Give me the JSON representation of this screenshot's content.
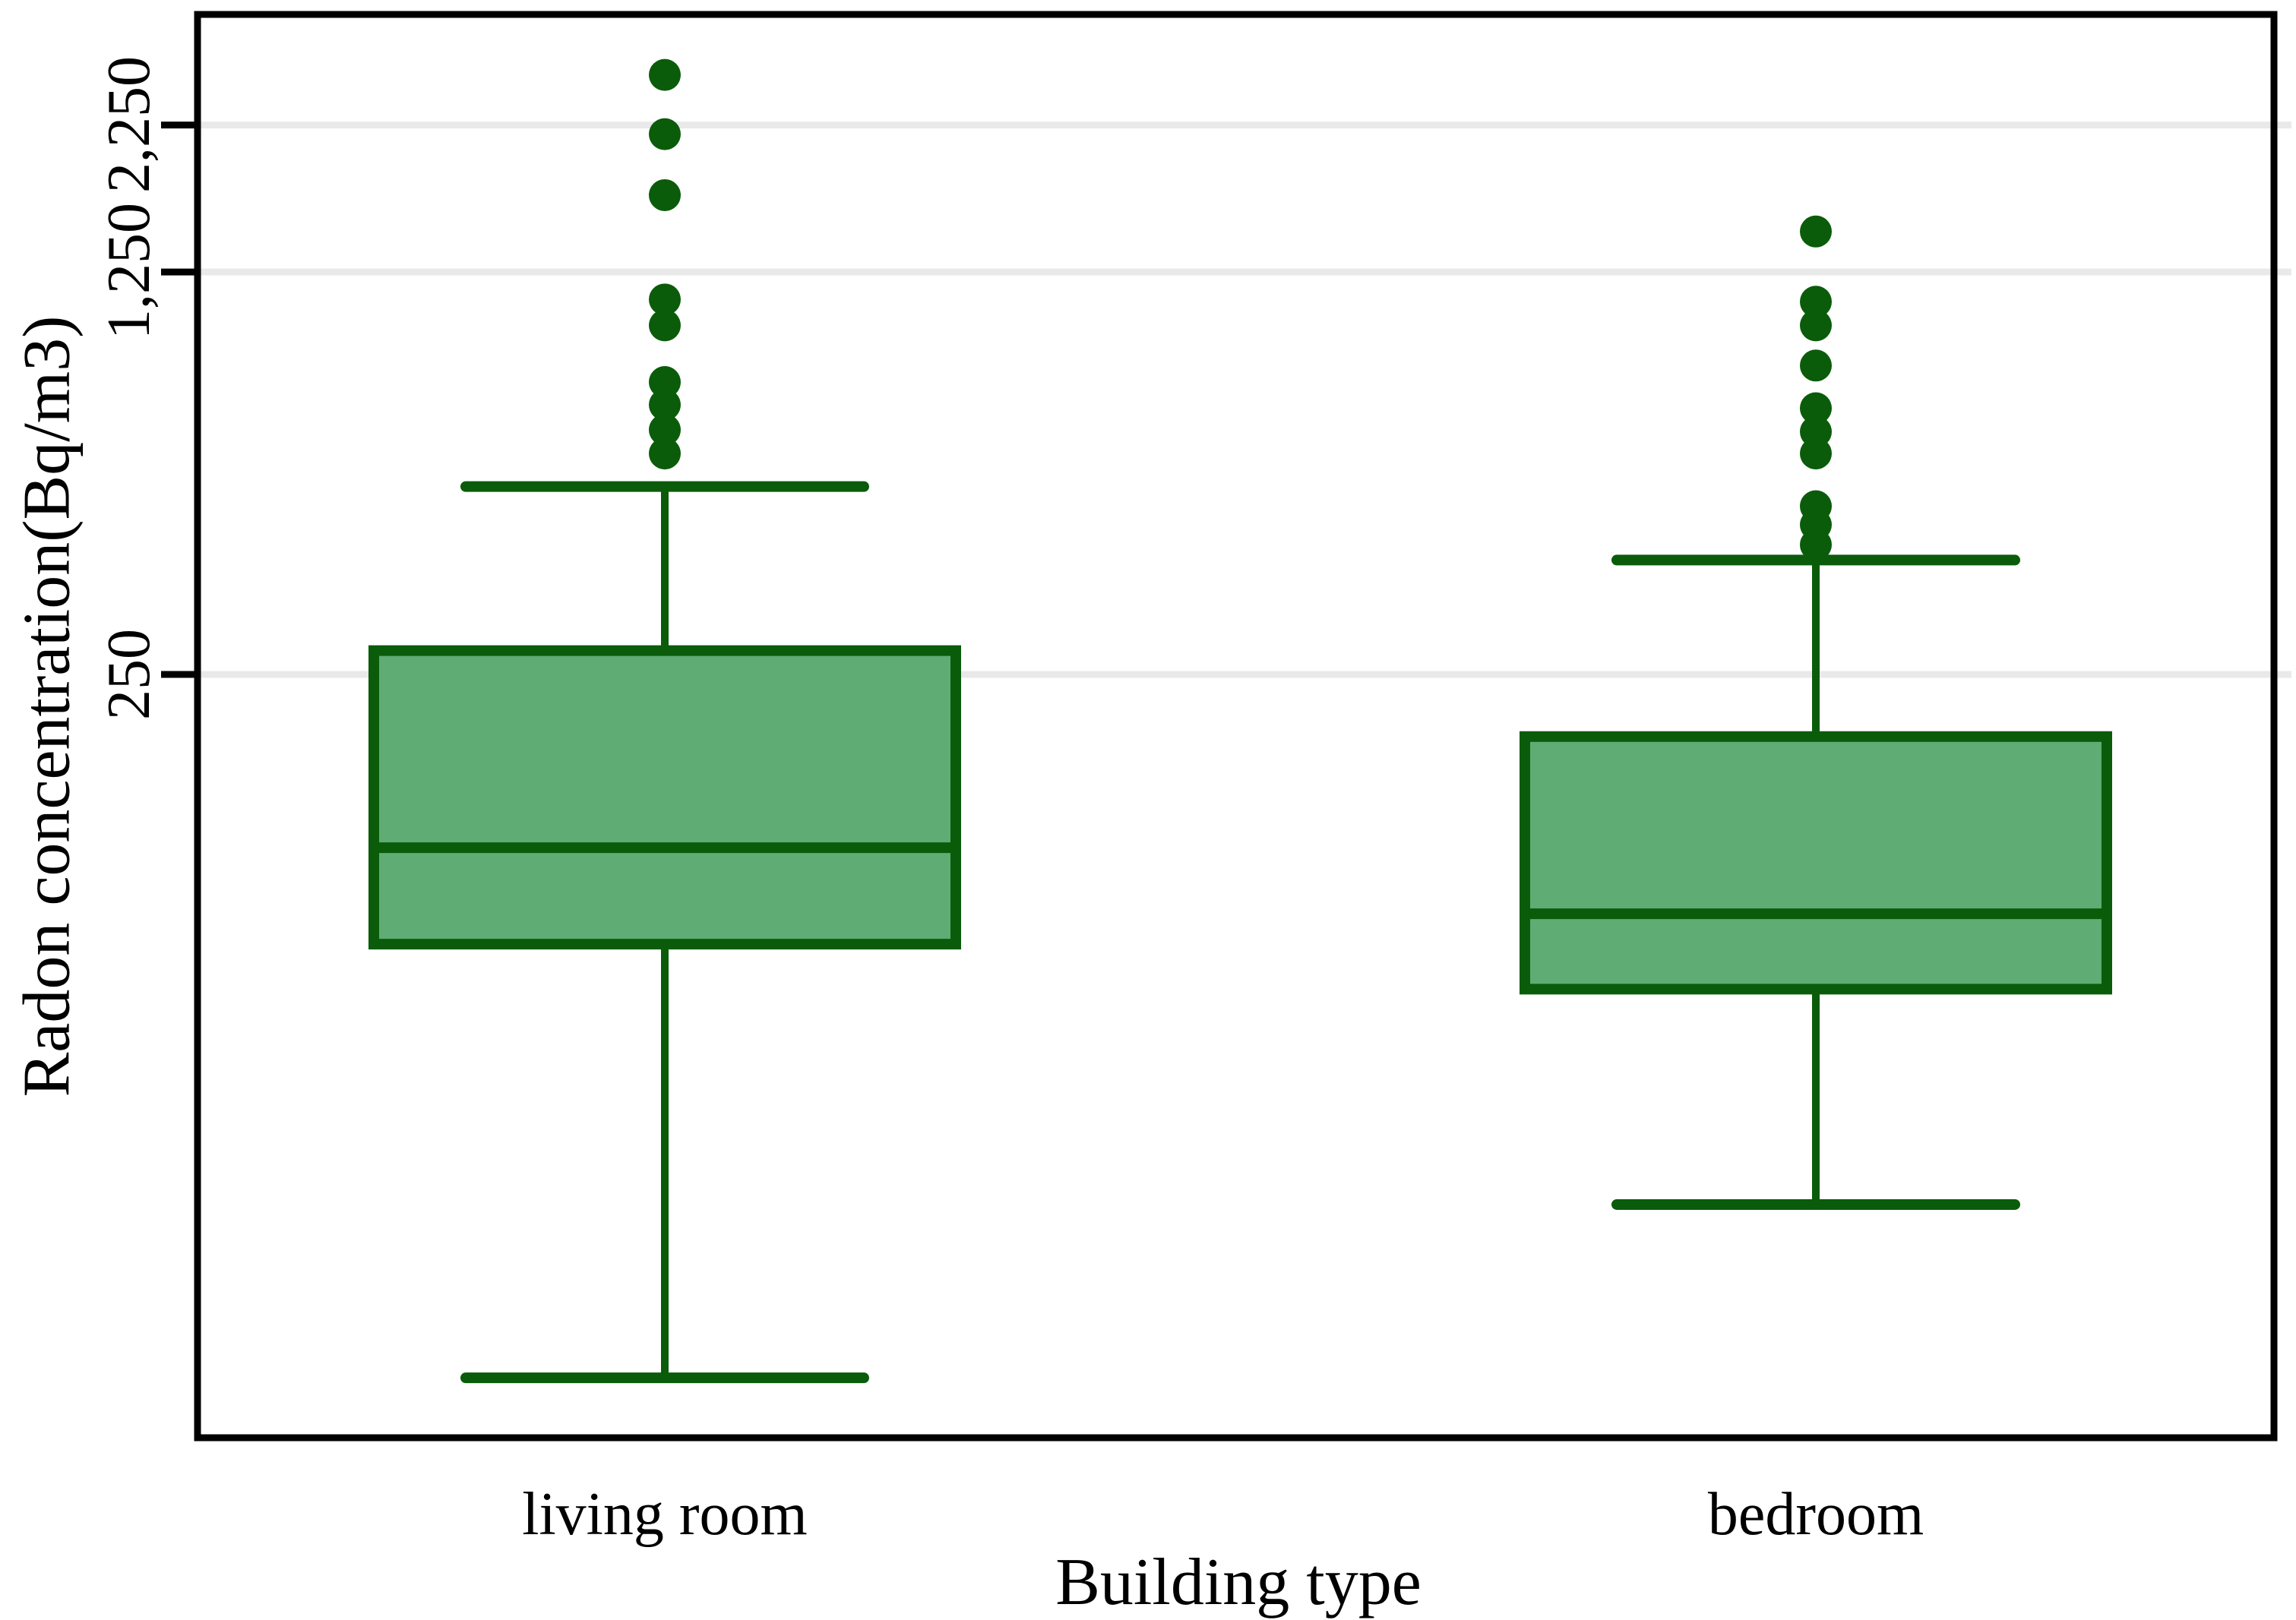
{
  "chart_data": {
    "type": "boxplot",
    "title": "",
    "xlabel": "Building type",
    "ylabel": "Radon concentration(Bq/m3)",
    "y_scale": "log",
    "grid": "on",
    "y_ticks": [
      {
        "value": 250,
        "label": "250"
      },
      {
        "value": 1250,
        "label": "1,250"
      },
      {
        "value": 2250,
        "label": "2,250"
      }
    ],
    "categories": [
      "living room",
      "bedroom"
    ],
    "series": [
      {
        "name": "living room",
        "whisker_low": 15,
        "q1": 85,
        "median": 125,
        "q3": 275,
        "whisker_high": 530,
        "outliers": [
          605,
          665,
          735,
          805,
          1010,
          1120,
          1700,
          2170,
          2750
        ]
      },
      {
        "name": "bedroom",
        "whisker_low": 30,
        "q1": 71,
        "median": 96,
        "q3": 195,
        "whisker_high": 395,
        "outliers": [
          420,
          455,
          490,
          605,
          660,
          725,
          860,
          1010,
          1110,
          1470
        ]
      }
    ],
    "colors": {
      "box_fill": "#5FAC74",
      "box_stroke": "#0A5C0A",
      "grid": "#E9E9E9",
      "axis": "#000000"
    }
  }
}
